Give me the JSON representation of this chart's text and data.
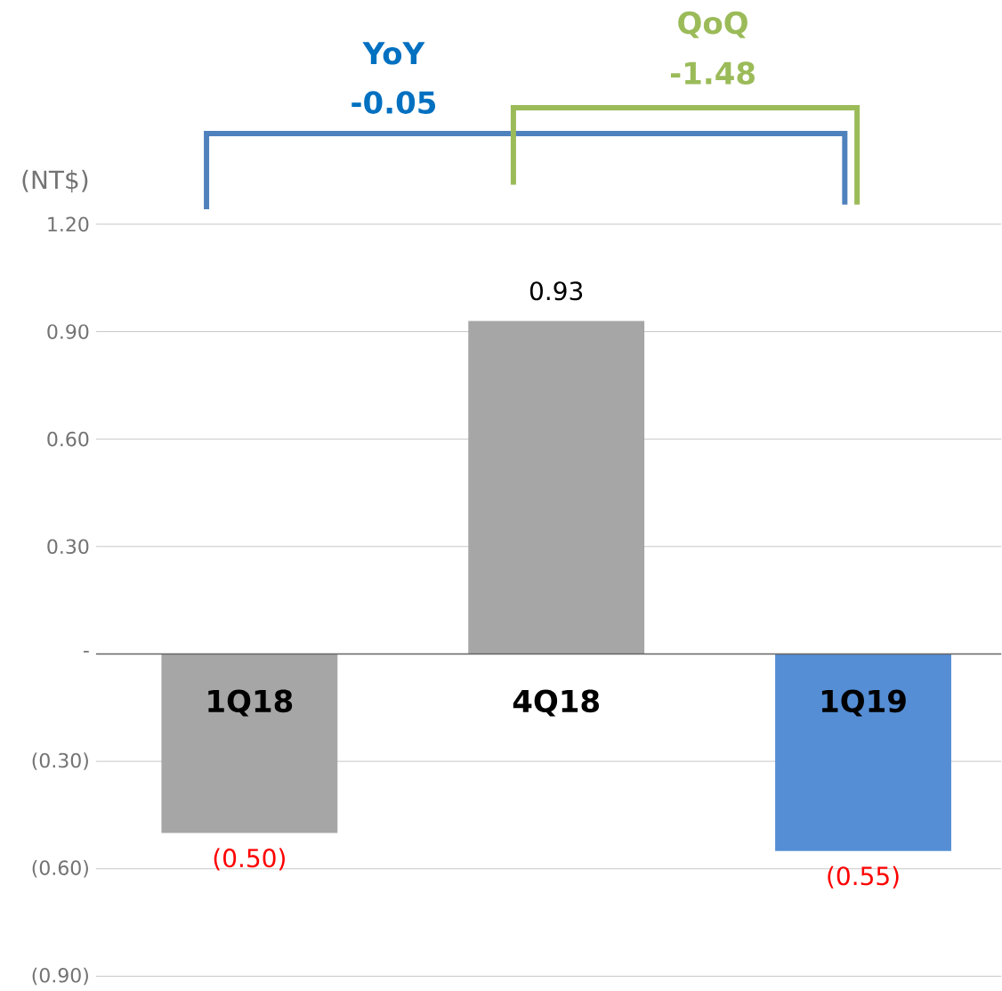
{
  "chart_data": {
    "type": "bar",
    "ylabel": "(NT$)",
    "categories": [
      "1Q18",
      "4Q18",
      "1Q19"
    ],
    "values": [
      -0.5,
      0.93,
      -0.55
    ],
    "colors": [
      "#a6a6a6",
      "#a6a6a6",
      "#558ed5"
    ],
    "value_labels": [
      "(0.50)",
      "0.93",
      "(0.55)"
    ],
    "ylim": [
      -0.9,
      1.2
    ],
    "yticks": [
      {
        "value": -0.9,
        "label": "(0.90)"
      },
      {
        "value": -0.6,
        "label": "(0.60)"
      },
      {
        "value": -0.3,
        "label": "(0.30)"
      },
      {
        "value": 0,
        "label": "-"
      },
      {
        "value": 0.3,
        "label": "0.30"
      },
      {
        "value": 0.6,
        "label": "0.60"
      },
      {
        "value": 0.9,
        "label": "0.90"
      },
      {
        "value": 1.2,
        "label": "1.20"
      }
    ],
    "grid": "y",
    "annotations": [
      "YoY",
      "-0.05",
      "QoQ",
      "-1.48"
    ]
  }
}
